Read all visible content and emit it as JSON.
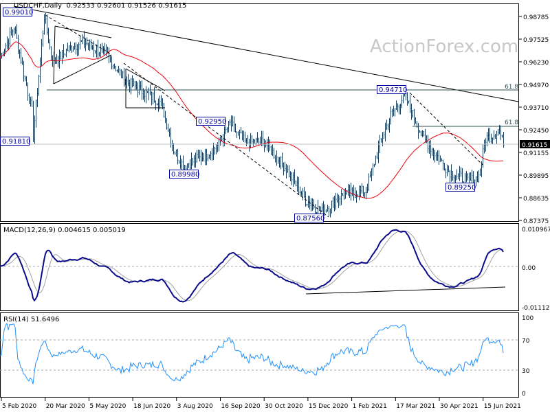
{
  "header": {
    "symbol": "USDCHF,Daily",
    "ohlc": "0.92533 0.92601 0.91526 0.91615"
  },
  "watermark": "ActionForex.com",
  "colors": {
    "bars": "#1c3d5a",
    "ma": "#e8000b",
    "macd": "#0a0a8a",
    "signal": "#a0a0a0",
    "rsi": "#1e90ff",
    "label_border": "#0000a0",
    "current_badge_bg": "#000000"
  },
  "chart_data": [
    {
      "type": "ohlc",
      "title": "USDCHF,Daily",
      "current_price": "0.91615",
      "y_ticks": [
        "0.98785",
        "0.97525",
        "0.96230",
        "0.94970",
        "0.93710",
        "0.92450",
        "0.91155",
        "0.89895",
        "0.88635",
        "0.87375"
      ],
      "ylim": [
        0.87375,
        0.98785
      ],
      "x_ticks": [
        "5 Feb 2020",
        "20 Mar 2020",
        "5 May 2020",
        "18 Jun 2020",
        "3 Aug 2020",
        "16 Sep 2020",
        "30 Oct 2020",
        "15 Dec 2020",
        "1 Feb 2021",
        "17 Mar 2021",
        "30 Apr 2021",
        "15 Jun 2021"
      ],
      "price_path": [
        [
          "2020-02-04",
          0.965
        ],
        [
          "2020-02-18",
          0.982
        ],
        [
          "2020-03-06",
          0.935
        ],
        [
          "2020-03-09",
          0.922
        ],
        [
          "2020-03-19",
          0.988
        ],
        [
          "2020-03-27",
          0.962
        ],
        [
          "2020-04-14",
          0.97
        ],
        [
          "2020-04-28",
          0.974
        ],
        [
          "2020-05-22",
          0.966
        ],
        [
          "2020-06-10",
          0.952
        ],
        [
          "2020-07-16",
          0.94
        ],
        [
          "2020-07-29",
          0.914
        ],
        [
          "2020-08-07",
          0.905
        ],
        [
          "2020-08-28",
          0.91
        ],
        [
          "2020-09-11",
          0.916
        ],
        [
          "2020-09-24",
          0.928
        ],
        [
          "2020-10-09",
          0.918
        ],
        [
          "2020-10-29",
          0.918
        ],
        [
          "2020-11-20",
          0.903
        ],
        [
          "2020-12-10",
          0.886
        ],
        [
          "2020-12-28",
          0.879
        ],
        [
          "2021-01-14",
          0.888
        ],
        [
          "2021-02-10",
          0.891
        ],
        [
          "2021-02-24",
          0.917
        ],
        [
          "2021-03-08",
          0.933
        ],
        [
          "2021-03-22",
          0.944
        ],
        [
          "2021-04-08",
          0.921
        ],
        [
          "2021-05-05",
          0.902
        ],
        [
          "2021-05-26",
          0.896
        ],
        [
          "2021-06-04",
          0.899
        ],
        [
          "2021-06-11",
          0.92
        ],
        [
          "2021-06-25",
          0.924
        ],
        [
          "2021-06-30",
          0.91615
        ]
      ],
      "moving_average": "red line",
      "annotations": [
        {
          "label": "0.99010",
          "price": 0.9901
        },
        {
          "label": "0.91810",
          "price": 0.9181
        },
        {
          "label": "0.89980",
          "price": 0.8998
        },
        {
          "label": "0.92950",
          "price": 0.9295
        },
        {
          "label": "0.87560",
          "price": 0.8756
        },
        {
          "label": "0.94710",
          "price": 0.9471
        },
        {
          "label": "0.89250",
          "price": 0.8925
        }
      ],
      "fib_levels": [
        {
          "label": "61.8"
        },
        {
          "label": "61.8"
        }
      ]
    },
    {
      "type": "line",
      "title": "MACD(12,26,9) 0.004615 0.005019",
      "y_ticks": [
        "0.010967",
        "0.00",
        "-0.011127"
      ],
      "ylim": [
        -0.011127,
        0.010967
      ],
      "series": [
        {
          "name": "MACD"
        },
        {
          "name": "Signal"
        }
      ]
    },
    {
      "type": "line",
      "title": "RSI(14) 51.6496",
      "y_ticks": [
        "100",
        "70",
        "30",
        "0"
      ],
      "ylim": [
        0,
        100
      ]
    }
  ]
}
